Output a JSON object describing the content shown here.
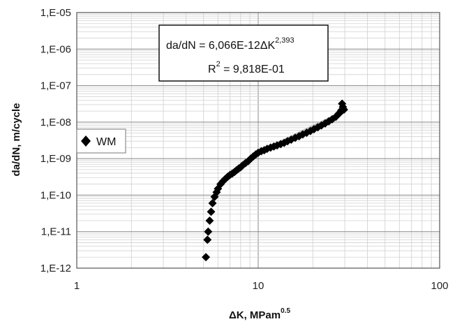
{
  "chart_data": {
    "type": "scatter",
    "x_scale": "log",
    "y_scale": "log",
    "xlim": [
      1,
      100
    ],
    "ylim": [
      1e-12,
      1e-05
    ],
    "grid": true,
    "legend_position": "left",
    "x_ticks": [
      "1",
      "10",
      "100"
    ],
    "y_ticks": [
      "1,E-12",
      "1,E-11",
      "1,E-10",
      "1,E-09",
      "1,E-08",
      "1,E-07",
      "1,E-06",
      "1,E-05"
    ],
    "xlabel": {
      "main": "ΔK, MPam",
      "sup": "0.5"
    },
    "ylabel": "da/dN, m/cycle",
    "series": [
      {
        "name": "WM",
        "marker": "diamond",
        "color": "#000000",
        "points": [
          [
            5.15,
            2e-12
          ],
          [
            5.25,
            6e-12
          ],
          [
            5.3,
            1e-11
          ],
          [
            5.4,
            2e-11
          ],
          [
            5.5,
            3.5e-11
          ],
          [
            5.6,
            6e-11
          ],
          [
            5.75,
            9e-11
          ],
          [
            5.9,
            1.2e-10
          ],
          [
            6.0,
            1.5e-10
          ],
          [
            6.2,
            2e-10
          ],
          [
            6.4,
            2.4e-10
          ],
          [
            6.6,
            2.8e-10
          ],
          [
            6.8,
            3.2e-10
          ],
          [
            7.0,
            3.6e-10
          ],
          [
            7.2,
            3.9e-10
          ],
          [
            7.4,
            4.3e-10
          ],
          [
            7.6,
            4.8e-10
          ],
          [
            7.8,
            5.3e-10
          ],
          [
            8.0,
            5.8e-10
          ],
          [
            8.2,
            6.5e-10
          ],
          [
            8.5,
            7.5e-10
          ],
          [
            8.8,
            8.5e-10
          ],
          [
            9.1,
            1e-09
          ],
          [
            9.4,
            1.15e-09
          ],
          [
            9.7,
            1.3e-09
          ],
          [
            10.0,
            1.45e-09
          ],
          [
            10.4,
            1.6e-09
          ],
          [
            10.8,
            1.7e-09
          ],
          [
            11.2,
            1.85e-09
          ],
          [
            11.7,
            2e-09
          ],
          [
            12.2,
            2.15e-09
          ],
          [
            12.7,
            2.3e-09
          ],
          [
            13.3,
            2.5e-09
          ],
          [
            13.9,
            2.7e-09
          ],
          [
            14.5,
            3e-09
          ],
          [
            15.2,
            3.3e-09
          ],
          [
            16.0,
            3.7e-09
          ],
          [
            16.8,
            4.1e-09
          ],
          [
            17.6,
            4.6e-09
          ],
          [
            18.5,
            5.1e-09
          ],
          [
            19.4,
            5.7e-09
          ],
          [
            20.3,
            6.4e-09
          ],
          [
            21.3,
            7.2e-09
          ],
          [
            22.3,
            8.1e-09
          ],
          [
            23.4,
            9.2e-09
          ],
          [
            24.5,
            1.05e-08
          ],
          [
            25.6,
            1.2e-08
          ],
          [
            26.8,
            1.4e-08
          ],
          [
            27.8,
            1.7e-08
          ],
          [
            28.7,
            2.1e-08
          ],
          [
            29.3,
            2.6e-08
          ],
          [
            29.7,
            2.2e-08
          ],
          [
            29.0,
            3.2e-08
          ],
          [
            28.2,
            1.8e-08
          ]
        ]
      }
    ],
    "fit": {
      "equation_prefix": "da/dN = 6,066E-12",
      "equation_delta": "Δ",
      "equation_var": "K",
      "equation_exponent": "2,393",
      "coefficient": 6.066e-12,
      "exponent": 2.393,
      "x_range": [
        9.5,
        28
      ],
      "r2_prefix": "R",
      "r2_sup": "2",
      "r2_value": " = 9,818E-01",
      "line_color": "#bbbbbb"
    }
  }
}
